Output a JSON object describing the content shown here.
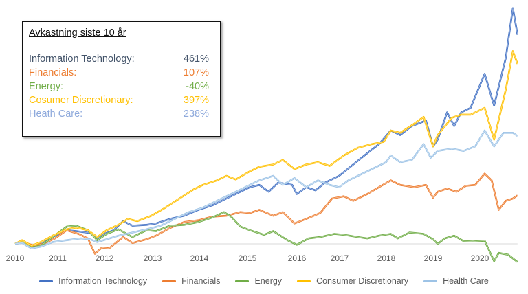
{
  "info_box": {
    "title": "Avkastning siste 10 år",
    "rows": [
      {
        "label": "Information Technology:",
        "value": "461%",
        "color": "#44546A"
      },
      {
        "label": "Financials:",
        "value": "107%",
        "color": "#ED7D31"
      },
      {
        "label": "Energy:",
        "value": "-40%",
        "color": "#70AD47"
      },
      {
        "label": "Cosumer Discretionary:",
        "value": "397%",
        "color": "#FFC000"
      },
      {
        "label": "Heath Care:",
        "value": "238%",
        "color": "#8FAADC"
      }
    ]
  },
  "chart_data": {
    "type": "line",
    "title": "",
    "xlabel": "",
    "ylabel": "",
    "x_ticks": [
      "2010",
      "2011",
      "2012",
      "2013",
      "2014",
      "2015",
      "2016",
      "2017",
      "2018",
      "2019",
      "2020"
    ],
    "xlim": [
      2010,
      2020.7
    ],
    "ylim": [
      -55,
      520
    ],
    "baseline": 0,
    "legend_position": "bottom",
    "series": [
      {
        "name": "Information Technology",
        "color": "#4472C4",
        "points": [
          [
            2010,
            0
          ],
          [
            2010.15,
            6
          ],
          [
            2010.35,
            -6
          ],
          [
            2010.5,
            -3
          ],
          [
            2010.65,
            8
          ],
          [
            2010.9,
            20
          ],
          [
            2011.1,
            30
          ],
          [
            2011.3,
            28
          ],
          [
            2011.6,
            24
          ],
          [
            2011.75,
            12
          ],
          [
            2011.9,
            22
          ],
          [
            2012.1,
            30
          ],
          [
            2012.3,
            50
          ],
          [
            2012.5,
            40
          ],
          [
            2012.8,
            42
          ],
          [
            2013.0,
            45
          ],
          [
            2013.3,
            55
          ],
          [
            2013.6,
            62
          ],
          [
            2013.9,
            75
          ],
          [
            2014.2,
            85
          ],
          [
            2014.5,
            100
          ],
          [
            2014.8,
            115
          ],
          [
            2015.0,
            125
          ],
          [
            2015.2,
            130
          ],
          [
            2015.4,
            115
          ],
          [
            2015.6,
            135
          ],
          [
            2015.9,
            130
          ],
          [
            2016.0,
            110
          ],
          [
            2016.2,
            125
          ],
          [
            2016.4,
            118
          ],
          [
            2016.6,
            135
          ],
          [
            2016.9,
            150
          ],
          [
            2017.2,
            175
          ],
          [
            2017.5,
            200
          ],
          [
            2017.75,
            220
          ],
          [
            2018.0,
            250
          ],
          [
            2018.2,
            240
          ],
          [
            2018.45,
            260
          ],
          [
            2018.75,
            272
          ],
          [
            2018.9,
            215
          ],
          [
            2019.0,
            230
          ],
          [
            2019.2,
            290
          ],
          [
            2019.35,
            260
          ],
          [
            2019.5,
            290
          ],
          [
            2019.7,
            300
          ],
          [
            2020.0,
            375
          ],
          [
            2020.2,
            305
          ],
          [
            2020.45,
            410
          ],
          [
            2020.6,
            520
          ],
          [
            2020.7,
            461
          ]
        ]
      },
      {
        "name": "Financials",
        "color": "#ED7D31",
        "points": [
          [
            2010,
            0
          ],
          [
            2010.2,
            3
          ],
          [
            2010.4,
            -4
          ],
          [
            2010.6,
            0
          ],
          [
            2010.85,
            12
          ],
          [
            2011.1,
            30
          ],
          [
            2011.35,
            22
          ],
          [
            2011.55,
            12
          ],
          [
            2011.7,
            -22
          ],
          [
            2011.85,
            -8
          ],
          [
            2012.0,
            -10
          ],
          [
            2012.3,
            15
          ],
          [
            2012.5,
            2
          ],
          [
            2012.8,
            10
          ],
          [
            2013.0,
            18
          ],
          [
            2013.3,
            35
          ],
          [
            2013.6,
            48
          ],
          [
            2013.9,
            52
          ],
          [
            2014.2,
            60
          ],
          [
            2014.5,
            62
          ],
          [
            2014.8,
            70
          ],
          [
            2015.0,
            68
          ],
          [
            2015.2,
            75
          ],
          [
            2015.5,
            62
          ],
          [
            2015.7,
            70
          ],
          [
            2015.95,
            45
          ],
          [
            2016.2,
            55
          ],
          [
            2016.5,
            68
          ],
          [
            2016.75,
            100
          ],
          [
            2017.0,
            105
          ],
          [
            2017.2,
            95
          ],
          [
            2017.5,
            110
          ],
          [
            2017.8,
            128
          ],
          [
            2018.0,
            140
          ],
          [
            2018.2,
            130
          ],
          [
            2018.5,
            125
          ],
          [
            2018.75,
            130
          ],
          [
            2018.9,
            102
          ],
          [
            2019.0,
            115
          ],
          [
            2019.2,
            122
          ],
          [
            2019.4,
            115
          ],
          [
            2019.6,
            128
          ],
          [
            2019.8,
            130
          ],
          [
            2020.0,
            155
          ],
          [
            2020.15,
            140
          ],
          [
            2020.3,
            75
          ],
          [
            2020.45,
            95
          ],
          [
            2020.6,
            100
          ],
          [
            2020.7,
            107
          ]
        ]
      },
      {
        "name": "Energy",
        "color": "#70AD47",
        "points": [
          [
            2010,
            0
          ],
          [
            2010.15,
            5
          ],
          [
            2010.35,
            -8
          ],
          [
            2010.55,
            -4
          ],
          [
            2010.8,
            15
          ],
          [
            2011.1,
            38
          ],
          [
            2011.3,
            40
          ],
          [
            2011.55,
            30
          ],
          [
            2011.75,
            8
          ],
          [
            2011.95,
            22
          ],
          [
            2012.2,
            32
          ],
          [
            2012.5,
            15
          ],
          [
            2012.8,
            30
          ],
          [
            2013.0,
            28
          ],
          [
            2013.3,
            40
          ],
          [
            2013.6,
            42
          ],
          [
            2013.9,
            48
          ],
          [
            2014.2,
            58
          ],
          [
            2014.45,
            70
          ],
          [
            2014.6,
            60
          ],
          [
            2014.8,
            38
          ],
          [
            2015.0,
            30
          ],
          [
            2015.3,
            20
          ],
          [
            2015.5,
            28
          ],
          [
            2015.8,
            8
          ],
          [
            2016.0,
            -2
          ],
          [
            2016.25,
            12
          ],
          [
            2016.5,
            15
          ],
          [
            2016.8,
            22
          ],
          [
            2017.0,
            20
          ],
          [
            2017.3,
            15
          ],
          [
            2017.5,
            12
          ],
          [
            2017.75,
            18
          ],
          [
            2018.0,
            22
          ],
          [
            2018.15,
            12
          ],
          [
            2018.4,
            25
          ],
          [
            2018.7,
            22
          ],
          [
            2018.9,
            10
          ],
          [
            2019.0,
            0
          ],
          [
            2019.15,
            12
          ],
          [
            2019.35,
            18
          ],
          [
            2019.55,
            6
          ],
          [
            2019.75,
            5
          ],
          [
            2020.0,
            7
          ],
          [
            2020.2,
            -38
          ],
          [
            2020.3,
            -20
          ],
          [
            2020.5,
            -24
          ],
          [
            2020.7,
            -40
          ]
        ]
      },
      {
        "name": "Consumer Discretionary",
        "color": "#FFC000",
        "points": [
          [
            2010,
            0
          ],
          [
            2010.15,
            8
          ],
          [
            2010.35,
            -4
          ],
          [
            2010.55,
            4
          ],
          [
            2010.8,
            18
          ],
          [
            2011.1,
            32
          ],
          [
            2011.3,
            36
          ],
          [
            2011.55,
            30
          ],
          [
            2011.75,
            15
          ],
          [
            2011.95,
            30
          ],
          [
            2012.2,
            42
          ],
          [
            2012.4,
            55
          ],
          [
            2012.6,
            50
          ],
          [
            2012.9,
            62
          ],
          [
            2013.2,
            80
          ],
          [
            2013.5,
            100
          ],
          [
            2013.8,
            120
          ],
          [
            2014.0,
            130
          ],
          [
            2014.3,
            140
          ],
          [
            2014.5,
            150
          ],
          [
            2014.7,
            142
          ],
          [
            2015.0,
            160
          ],
          [
            2015.2,
            170
          ],
          [
            2015.5,
            175
          ],
          [
            2015.7,
            185
          ],
          [
            2015.95,
            165
          ],
          [
            2016.2,
            175
          ],
          [
            2016.45,
            180
          ],
          [
            2016.7,
            172
          ],
          [
            2017.0,
            195
          ],
          [
            2017.3,
            212
          ],
          [
            2017.6,
            220
          ],
          [
            2017.85,
            225
          ],
          [
            2018.0,
            250
          ],
          [
            2018.2,
            245
          ],
          [
            2018.5,
            265
          ],
          [
            2018.7,
            280
          ],
          [
            2018.9,
            215
          ],
          [
            2019.0,
            240
          ],
          [
            2019.3,
            278
          ],
          [
            2019.5,
            285
          ],
          [
            2019.7,
            285
          ],
          [
            2020.0,
            300
          ],
          [
            2020.2,
            230
          ],
          [
            2020.45,
            340
          ],
          [
            2020.6,
            425
          ],
          [
            2020.7,
            397
          ]
        ]
      },
      {
        "name": "Health Care",
        "color": "#9DC3E6",
        "points": [
          [
            2010,
            0
          ],
          [
            2010.15,
            2
          ],
          [
            2010.35,
            -10
          ],
          [
            2010.55,
            -6
          ],
          [
            2010.8,
            4
          ],
          [
            2011.1,
            8
          ],
          [
            2011.4,
            12
          ],
          [
            2011.6,
            10
          ],
          [
            2011.75,
            4
          ],
          [
            2011.95,
            10
          ],
          [
            2012.2,
            18
          ],
          [
            2012.5,
            25
          ],
          [
            2012.8,
            32
          ],
          [
            2013.1,
            40
          ],
          [
            2013.4,
            55
          ],
          [
            2013.7,
            70
          ],
          [
            2014.0,
            80
          ],
          [
            2014.3,
            95
          ],
          [
            2014.6,
            110
          ],
          [
            2014.9,
            125
          ],
          [
            2015.2,
            140
          ],
          [
            2015.5,
            150
          ],
          [
            2015.7,
            130
          ],
          [
            2015.95,
            145
          ],
          [
            2016.2,
            125
          ],
          [
            2016.45,
            140
          ],
          [
            2016.7,
            130
          ],
          [
            2016.9,
            125
          ],
          [
            2017.1,
            140
          ],
          [
            2017.4,
            155
          ],
          [
            2017.7,
            170
          ],
          [
            2017.9,
            180
          ],
          [
            2018.0,
            195
          ],
          [
            2018.2,
            180
          ],
          [
            2018.45,
            185
          ],
          [
            2018.7,
            220
          ],
          [
            2018.85,
            190
          ],
          [
            2019.0,
            205
          ],
          [
            2019.3,
            210
          ],
          [
            2019.55,
            205
          ],
          [
            2019.8,
            215
          ],
          [
            2020.0,
            250
          ],
          [
            2020.2,
            215
          ],
          [
            2020.4,
            245
          ],
          [
            2020.6,
            245
          ],
          [
            2020.7,
            238
          ]
        ]
      }
    ]
  },
  "legend": [
    {
      "label": "Information Technology",
      "color": "#4472C4"
    },
    {
      "label": "Financials",
      "color": "#ED7D31"
    },
    {
      "label": "Energy",
      "color": "#70AD47"
    },
    {
      "label": "Consumer Discretionary",
      "color": "#FFC000"
    },
    {
      "label": "Health Care",
      "color": "#9DC3E6"
    }
  ]
}
